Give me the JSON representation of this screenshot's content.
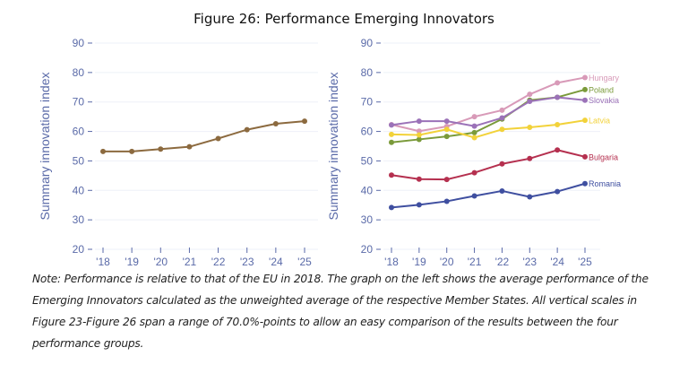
{
  "title": "Figure 26: Performance Emerging Innovators",
  "note": "Note: Performance is relative to that of the EU in 2018. The graph on the left shows the average performance of the Emerging Innovators calculated as the unweighted average of the respective Member States. All vertical scales in Figure 23-Figure 26 span a range of 70.0%-points to allow an easy comparison of the results between the four performance groups.",
  "chart_data": [
    {
      "type": "line",
      "title": "",
      "xlabel": "",
      "ylabel": "Summary innovation index",
      "x": [
        "'18",
        "'19",
        "'20",
        "'21",
        "'22",
        "'23",
        "'24",
        "'25"
      ],
      "yticks": [
        20,
        30,
        40,
        50,
        60,
        70,
        80,
        90
      ],
      "ylim": [
        20,
        90
      ],
      "grid": true,
      "series": [
        {
          "name": "Emerging Innovators",
          "color": "#8c6a3f",
          "values": [
            53.2,
            53.2,
            54.0,
            54.8,
            57.6,
            60.6,
            62.6,
            63.5
          ]
        }
      ]
    },
    {
      "type": "line",
      "title": "",
      "xlabel": "",
      "ylabel": "Summary innovation index",
      "x": [
        "'18",
        "'19",
        "'20",
        "'21",
        "'22",
        "'23",
        "'24",
        "'25"
      ],
      "yticks": [
        20,
        30,
        40,
        50,
        60,
        70,
        80,
        90
      ],
      "ylim": [
        20,
        90
      ],
      "grid": true,
      "legend": "end-of-line labels",
      "series": [
        {
          "name": "Hungary",
          "color": "#d89ab8",
          "values": [
            62.3,
            60.1,
            61.7,
            65.0,
            67.2,
            72.6,
            76.5,
            78.3
          ]
        },
        {
          "name": "Poland",
          "color": "#7a9a3a",
          "values": [
            56.3,
            57.3,
            58.3,
            59.6,
            64.2,
            70.6,
            71.6,
            74.2
          ]
        },
        {
          "name": "Slovakia",
          "color": "#9b72b8",
          "values": [
            62.2,
            63.5,
            63.5,
            61.8,
            64.6,
            70.2,
            71.6,
            70.6
          ]
        },
        {
          "name": "Latvia",
          "color": "#f2d23a",
          "values": [
            59.0,
            58.8,
            60.7,
            57.9,
            60.7,
            61.4,
            62.3,
            63.8
          ]
        },
        {
          "name": "Bulgaria",
          "color": "#b5304f",
          "values": [
            45.2,
            43.8,
            43.7,
            46.0,
            49.0,
            50.8,
            53.7,
            51.4
          ]
        },
        {
          "name": "Romania",
          "color": "#3f4fa0",
          "values": [
            34.2,
            35.1,
            36.3,
            38.1,
            39.8,
            37.8,
            39.6,
            42.3
          ]
        }
      ]
    }
  ]
}
